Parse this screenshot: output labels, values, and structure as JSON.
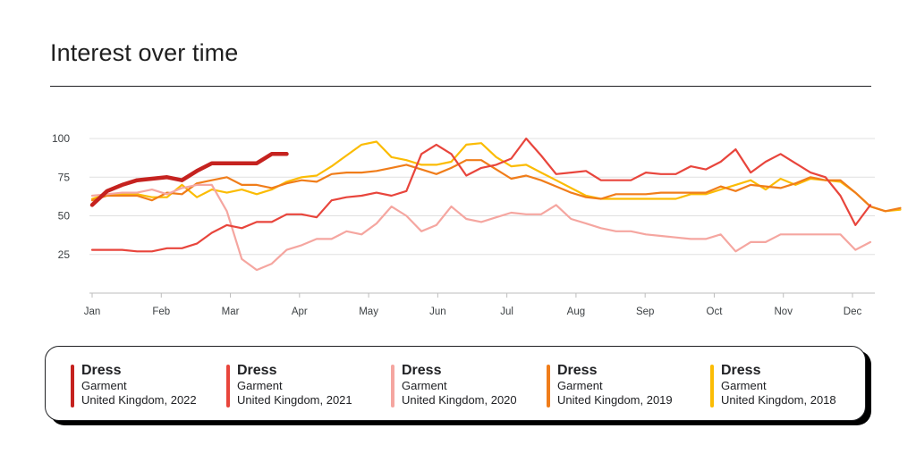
{
  "page": {
    "title": "Interest over time"
  },
  "chart_data": {
    "type": "line",
    "title": "Interest over time",
    "xlabel": "",
    "ylabel": "",
    "x_ticks": [
      "Jan",
      "Feb",
      "Mar",
      "Apr",
      "May",
      "Jun",
      "Jul",
      "Aug",
      "Sep",
      "Oct",
      "Nov",
      "Dec"
    ],
    "y_ticks": [
      25,
      50,
      75,
      100
    ],
    "ylim": [
      0,
      100
    ],
    "x_unit": "week of year",
    "xlim": [
      0,
      52
    ],
    "grid": true,
    "legend_position": "bottom",
    "series": [
      {
        "name": "United Kingdom, 2018",
        "color": "#fbbc04",
        "width": 2.2,
        "values": [
          61,
          64,
          64,
          64,
          62,
          62,
          70,
          62,
          67,
          65,
          67,
          64,
          67,
          72,
          75,
          76,
          82,
          89,
          96,
          98,
          88,
          86,
          83,
          83,
          85,
          96,
          97,
          88,
          82,
          83,
          78,
          73,
          68,
          63,
          61,
          61,
          61,
          61,
          61,
          61,
          64,
          64,
          67,
          70,
          73,
          67,
          74,
          70,
          74,
          73,
          72,
          65,
          56,
          53,
          54
        ]
      },
      {
        "name": "United Kingdom, 2019",
        "color": "#f07d1a",
        "width": 2.2,
        "values": [
          60,
          63,
          63,
          63,
          60,
          65,
          64,
          71,
          73,
          75,
          70,
          70,
          68,
          71,
          73,
          72,
          77,
          78,
          78,
          79,
          81,
          83,
          80,
          77,
          81,
          86,
          86,
          80,
          74,
          76,
          73,
          69,
          65,
          62,
          61,
          64,
          64,
          64,
          65,
          65,
          65,
          65,
          69,
          66,
          70,
          69,
          68,
          71,
          75,
          73,
          73,
          65,
          56,
          53,
          55
        ]
      },
      {
        "name": "United Kingdom, 2020",
        "color": "#f5a6a0",
        "width": 2.2,
        "values": [
          63,
          64,
          65,
          65,
          67,
          64,
          68,
          70,
          70,
          53,
          22,
          15,
          19,
          28,
          31,
          35,
          35,
          40,
          38,
          45,
          56,
          50,
          40,
          44,
          56,
          48,
          46,
          49,
          52,
          51,
          51,
          57,
          48,
          45,
          42,
          40,
          40,
          38,
          37,
          36,
          35,
          35,
          38,
          27,
          33,
          33,
          38,
          38,
          38,
          38,
          38,
          28,
          33
        ]
      },
      {
        "name": "United Kingdom, 2021",
        "color": "#e8453c",
        "width": 2.2,
        "values": [
          28,
          28,
          28,
          27,
          27,
          29,
          29,
          32,
          39,
          44,
          42,
          46,
          46,
          51,
          51,
          49,
          60,
          62,
          63,
          65,
          63,
          66,
          90,
          96,
          90,
          76,
          81,
          83,
          87,
          100,
          89,
          77,
          78,
          79,
          73,
          73,
          73,
          78,
          77,
          77,
          82,
          80,
          85,
          93,
          78,
          85,
          90,
          84,
          78,
          75,
          63,
          44,
          57
        ]
      },
      {
        "name": "United Kingdom, 2022",
        "color": "#c5221f",
        "width": 4.5,
        "values": [
          57,
          66,
          70,
          73,
          74,
          75,
          73,
          79,
          84,
          84,
          84,
          84,
          90,
          90
        ]
      }
    ]
  },
  "legend": {
    "items": [
      {
        "term": "Dress",
        "category": "Garment",
        "region": "United Kingdom, 2022",
        "color": "#c5221f"
      },
      {
        "term": "Dress",
        "category": "Garment",
        "region": "United Kingdom, 2021",
        "color": "#e8453c"
      },
      {
        "term": "Dress",
        "category": "Garment",
        "region": "United Kingdom, 2020",
        "color": "#f5a6a0"
      },
      {
        "term": "Dress",
        "category": "Garment",
        "region": "United Kingdom, 2019",
        "color": "#f07d1a"
      },
      {
        "term": "Dress",
        "category": "Garment",
        "region": "United Kingdom, 2018",
        "color": "#fbbc04"
      }
    ]
  }
}
